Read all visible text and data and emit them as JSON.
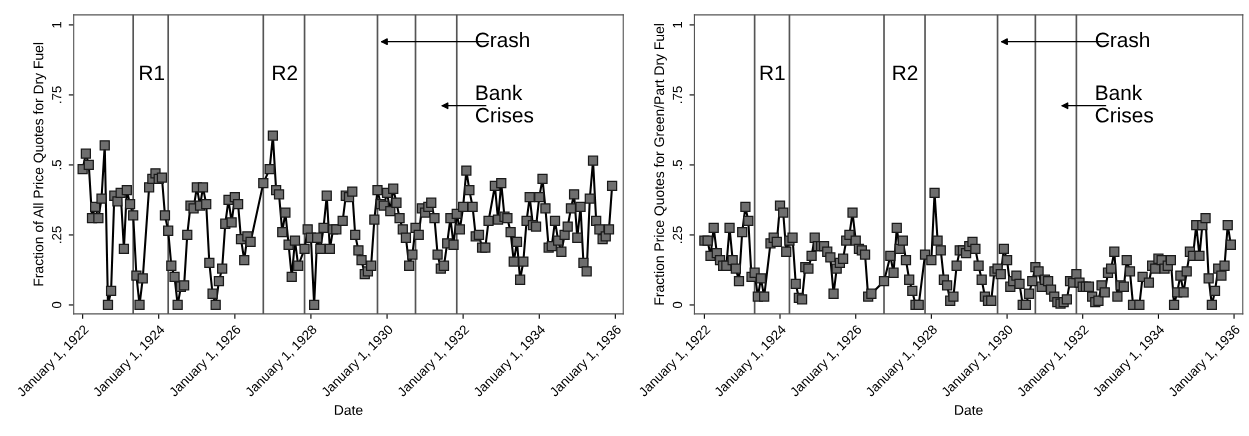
{
  "chart_data": [
    {
      "type": "line",
      "xlabel": "Date",
      "ylabel": "Fraction of All Price Quotes for Dry Fuel",
      "marker": "square",
      "line_style": "solid",
      "xlim": [
        "1921-10-07",
        "1936-03-17"
      ],
      "ylim": [
        -0.032,
        1.036
      ],
      "xticks": [
        {
          "value": "1922-01-01",
          "label": "January 1, 1922"
        },
        {
          "value": "1924-01-01",
          "label": "January 1, 1924"
        },
        {
          "value": "1926-01-01",
          "label": "January 1, 1926"
        },
        {
          "value": "1928-01-01",
          "label": "January 1, 1928"
        },
        {
          "value": "1930-01-01",
          "label": "January 1, 1930"
        },
        {
          "value": "1932-01-01",
          "label": "January 1, 1932"
        },
        {
          "value": "1934-01-01",
          "label": "January 1, 1934"
        },
        {
          "value": "1936-01-01",
          "label": "January 1, 1936"
        }
      ],
      "yticks": [
        0,
        {
          "value": 0.25,
          "label": ".25"
        },
        {
          "value": 0.5,
          "label": ".5"
        },
        {
          "value": 0.75,
          "label": ".75"
        },
        1
      ],
      "ref_lines": [
        {
          "axis": "x",
          "value": "1923-05",
          "color": "#555555"
        },
        {
          "axis": "x",
          "value": "1924-04",
          "color": "#555555"
        },
        {
          "axis": "x",
          "value": "1926-10",
          "color": "#555555"
        },
        {
          "axis": "x",
          "value": "1927-11",
          "color": "#555555"
        },
        {
          "axis": "x",
          "value": "1929-10",
          "color": "#555555"
        },
        {
          "axis": "x",
          "value": "1930-10",
          "color": "#555555"
        },
        {
          "axis": "x",
          "value": "1931-11",
          "color": "#555555"
        }
      ],
      "annotations": [
        "R1",
        "R2",
        {
          "text": "Crash",
          "x": "1929-10",
          "y": 0.94
        },
        "Bank\nCrises"
      ],
      "x": [
        "1922-01",
        "1922-02",
        "1922-03",
        "1922-04",
        "1922-05",
        "1922-06",
        "1922-07",
        "1922-08",
        "1922-09",
        "1922-10",
        "1922-11",
        "1922-12",
        "1923-01",
        "1923-02",
        "1923-03",
        "1923-04",
        "1923-05",
        "1923-06",
        "1923-07",
        "1923-08",
        "1923-10",
        "1923-11",
        "1923-12",
        "1924-01",
        "1924-02",
        "1924-03",
        "1924-04",
        "1924-05",
        "1924-06",
        "1924-07",
        "1924-08",
        "1924-09",
        "1924-10",
        "1924-11",
        "1924-12",
        "1925-01",
        "1925-02",
        "1925-03",
        "1925-04",
        "1925-05",
        "1925-06",
        "1925-07",
        "1925-08",
        "1925-09",
        "1925-10",
        "1925-11",
        "1925-12",
        "1926-01",
        "1926-02",
        "1926-03",
        "1926-04",
        "1926-05",
        "1926-06",
        "1926-10",
        "1926-12",
        "1927-01",
        "1927-02",
        "1927-03",
        "1927-04",
        "1927-05",
        "1927-06",
        "1927-07",
        "1927-08",
        "1927-09",
        "1927-11",
        "1927-12",
        "1928-01",
        "1928-02",
        "1928-03",
        "1928-04",
        "1928-05",
        "1928-06",
        "1928-07",
        "1928-08",
        "1928-09",
        "1928-11",
        "1928-12",
        "1929-01",
        "1929-02",
        "1929-03",
        "1929-04",
        "1929-05",
        "1929-06",
        "1929-07",
        "1929-08",
        "1929-09",
        "1929-10",
        "1929-11",
        "1929-12",
        "1930-01",
        "1930-02",
        "1930-03",
        "1930-04",
        "1930-05",
        "1930-06",
        "1930-07",
        "1930-08",
        "1930-09",
        "1930-10",
        "1930-11",
        "1930-12",
        "1931-01",
        "1931-02",
        "1931-03",
        "1931-04",
        "1931-05",
        "1931-06",
        "1931-07",
        "1931-08",
        "1931-09",
        "1931-10",
        "1931-11",
        "1931-12",
        "1932-01",
        "1932-02",
        "1932-03",
        "1932-04",
        "1932-05",
        "1932-06",
        "1932-07",
        "1932-08",
        "1932-09",
        "1932-11",
        "1932-12",
        "1933-01",
        "1933-02",
        "1933-03",
        "1933-04",
        "1933-05",
        "1933-06",
        "1933-07",
        "1933-08",
        "1933-09",
        "1933-10",
        "1933-11",
        "1933-12",
        "1934-01",
        "1934-02",
        "1934-03",
        "1934-04",
        "1934-05",
        "1934-06",
        "1934-07",
        "1934-08",
        "1934-09",
        "1934-10",
        "1934-11",
        "1934-12",
        "1935-01",
        "1935-02",
        "1935-03",
        "1935-04",
        "1935-05",
        "1935-06",
        "1935-07",
        "1935-08",
        "1935-09",
        "1935-10",
        "1935-11",
        "1935-12"
      ],
      "series": [
        {
          "color": "#000000",
          "values": [
            0.485,
            0.54,
            0.5,
            0.31,
            0.35,
            0.31,
            0.38,
            0.57,
            0,
            0.05,
            0.39,
            0.37,
            0.4,
            0.2,
            0.41,
            0.36,
            0.32,
            0.105,
            0,
            0.095,
            0.42,
            0.45,
            0.47,
            0.45,
            0.455,
            0.32,
            0.265,
            0.14,
            0.1,
            0,
            0.065,
            0.07,
            0.25,
            0.355,
            0.345,
            0.42,
            0.355,
            0.42,
            0.36,
            0.15,
            0.04,
            0,
            0.085,
            0.13,
            0.29,
            0.375,
            0.295,
            0.385,
            0.36,
            0.235,
            0.16,
            0.245,
            0.225,
            0.435,
            0.485,
            0.605,
            0.41,
            0.395,
            0.26,
            0.33,
            0.215,
            0.1,
            0.23,
            0.14,
            0.2,
            0.27,
            0.24,
            0,
            0.24,
            0.2,
            0.275,
            0.39,
            0.2,
            0.27,
            0.27,
            0.3,
            0.39,
            0.385,
            0.405,
            0.25,
            0.195,
            0.16,
            0.11,
            0.12,
            0.14,
            0.305,
            0.41,
            0.36,
            0.355,
            0.4,
            0.335,
            0.415,
            0.365,
            0.31,
            0.27,
            0.24,
            0.14,
            0.18,
            0.275,
            0.25,
            0.345,
            0.33,
            0.35,
            0.365,
            0.31,
            0.18,
            0.13,
            0.14,
            0.22,
            0.31,
            0.215,
            0.325,
            0.27,
            0.35,
            0.48,
            0.41,
            0.35,
            0.245,
            0.25,
            0.205,
            0.205,
            0.3,
            0.425,
            0.305,
            0.435,
            0.315,
            0.31,
            0.26,
            0.155,
            0.225,
            0.09,
            0.155,
            0.3,
            0.385,
            0.285,
            0.28,
            0.385,
            0.45,
            0.345,
            0.205,
            0.21,
            0.3,
            0.23,
            0.19,
            0.25,
            0.28,
            0.345,
            0.395,
            0.24,
            0.35,
            0.15,
            0.12,
            0.38,
            0.515,
            0.3,
            0.27,
            0.235,
            0.245,
            0.27,
            0.425
          ]
        }
      ]
    },
    {
      "type": "line",
      "xlabel": "Date",
      "ylabel": "Fraction Price Quotes for Green/Part Dry Fuel",
      "marker": "square",
      "line_style": "solid",
      "xlim": [
        "1921-09-27",
        "1936-03-25"
      ],
      "ylim": [
        -0.032,
        1.036
      ],
      "xticks": [
        {
          "value": "1922-01-01",
          "label": "January 1, 1922"
        },
        {
          "value": "1924-01-01",
          "label": "January 1, 1924"
        },
        {
          "value": "1926-01-01",
          "label": "January 1, 1926"
        },
        {
          "value": "1928-01-01",
          "label": "January 1, 1928"
        },
        {
          "value": "1930-01-01",
          "label": "January 1, 1930"
        },
        {
          "value": "1932-01-01",
          "label": "January 1, 1932"
        },
        {
          "value": "1934-01-01",
          "label": "January 1, 1934"
        },
        {
          "value": "1936-01-01",
          "label": "January 1, 1936"
        }
      ],
      "yticks": [
        0,
        {
          "value": 0.25,
          "label": ".25"
        },
        {
          "value": 0.5,
          "label": ".5"
        },
        {
          "value": 0.75,
          "label": ".75"
        },
        1
      ],
      "ref_lines": [
        {
          "axis": "x",
          "value": "1923-05",
          "color": "#555555"
        },
        {
          "axis": "x",
          "value": "1924-04",
          "color": "#555555"
        },
        {
          "axis": "x",
          "value": "1926-10",
          "color": "#555555"
        },
        {
          "axis": "x",
          "value": "1927-11",
          "color": "#555555"
        },
        {
          "axis": "x",
          "value": "1929-10",
          "color": "#555555"
        },
        {
          "axis": "x",
          "value": "1930-10",
          "color": "#555555"
        },
        {
          "axis": "x",
          "value": "1931-11",
          "color": "#555555"
        }
      ],
      "annotations": [
        "R1",
        "R2",
        {
          "text": "Crash",
          "x": "1929-10",
          "y": 0.94
        },
        "Bank\nCrises"
      ],
      "x": [
        "1922-01",
        "1922-02",
        "1922-03",
        "1922-04",
        "1922-05",
        "1922-06",
        "1922-07",
        "1922-08",
        "1922-09",
        "1922-10",
        "1922-11",
        "1922-12",
        "1923-01",
        "1923-02",
        "1923-03",
        "1923-04",
        "1923-05",
        "1923-06",
        "1923-07",
        "1923-08",
        "1923-10",
        "1923-11",
        "1923-12",
        "1924-01",
        "1924-02",
        "1924-03",
        "1924-04",
        "1924-05",
        "1924-06",
        "1924-07",
        "1924-08",
        "1924-09",
        "1924-10",
        "1924-11",
        "1924-12",
        "1925-01",
        "1925-02",
        "1925-03",
        "1925-04",
        "1925-05",
        "1925-06",
        "1925-07",
        "1925-08",
        "1925-09",
        "1925-10",
        "1925-11",
        "1925-12",
        "1926-01",
        "1926-02",
        "1926-03",
        "1926-04",
        "1926-05",
        "1926-06",
        "1926-10",
        "1926-12",
        "1927-01",
        "1927-02",
        "1927-03",
        "1927-04",
        "1927-05",
        "1927-06",
        "1927-07",
        "1927-08",
        "1927-09",
        "1927-11",
        "1928-01",
        "1928-02",
        "1928-03",
        "1928-04",
        "1928-05",
        "1928-06",
        "1928-07",
        "1928-08",
        "1928-09",
        "1928-10",
        "1928-11",
        "1928-12",
        "1929-01",
        "1929-02",
        "1929-03",
        "1929-04",
        "1929-05",
        "1929-06",
        "1929-07",
        "1929-08",
        "1929-09",
        "1929-10",
        "1929-11",
        "1929-12",
        "1930-01",
        "1930-02",
        "1930-03",
        "1930-04",
        "1930-05",
        "1930-06",
        "1930-07",
        "1930-08",
        "1930-09",
        "1930-10",
        "1930-11",
        "1930-12",
        "1931-01",
        "1931-02",
        "1931-03",
        "1931-04",
        "1931-05",
        "1931-06",
        "1931-07",
        "1931-08",
        "1931-09",
        "1931-10",
        "1931-11",
        "1931-12",
        "1932-01",
        "1932-02",
        "1932-03",
        "1932-04",
        "1932-05",
        "1932-06",
        "1932-07",
        "1932-08",
        "1932-09",
        "1932-10",
        "1932-11",
        "1932-12",
        "1933-01",
        "1933-02",
        "1933-03",
        "1933-04",
        "1933-05",
        "1933-07",
        "1933-08",
        "1933-10",
        "1933-11",
        "1933-12",
        "1934-01",
        "1934-02",
        "1934-03",
        "1934-04",
        "1934-05",
        "1934-06",
        "1934-07",
        "1934-08",
        "1934-09",
        "1934-10",
        "1934-11",
        "1934-12",
        "1935-01",
        "1935-02",
        "1935-03",
        "1935-04",
        "1935-05",
        "1935-06",
        "1935-07",
        "1935-08",
        "1935-09",
        "1935-10",
        "1935-11",
        "1935-12"
      ],
      "series": [
        {
          "color": "#000000",
          "values": [
            0.23,
            0.23,
            0.175,
            0.275,
            0.185,
            0.16,
            0.14,
            0.14,
            0.275,
            0.16,
            0.13,
            0.085,
            0.26,
            0.35,
            0.3,
            0.1,
            0.115,
            0.03,
            0.095,
            0.03,
            0.22,
            0.24,
            0.225,
            0.355,
            0.33,
            0.19,
            0.23,
            0.24,
            0.075,
            0.025,
            0.02,
            0.135,
            0.13,
            0.175,
            0.24,
            0.21,
            0.21,
            0.21,
            0.19,
            0.17,
            0.04,
            0.13,
            0.15,
            0.165,
            0.23,
            0.25,
            0.33,
            0.23,
            0.2,
            0.195,
            0.18,
            0.03,
            0.04,
            0.085,
            0.175,
            0.115,
            0.275,
            0.2,
            0.23,
            0.16,
            0.09,
            0.05,
            0,
            0,
            0.18,
            0.16,
            0.4,
            0.23,
            0.195,
            0.09,
            0.07,
            0.015,
            0.03,
            0.14,
            0.195,
            0.195,
            0.185,
            0.21,
            0.225,
            0.2,
            0.14,
            0.09,
            0.03,
            0.015,
            0.015,
            0.12,
            0.13,
            0.11,
            0.2,
            0.16,
            0.065,
            0.085,
            0.105,
            0.075,
            0,
            0,
            0.04,
            0.085,
            0.135,
            0.12,
            0.065,
            0.09,
            0.085,
            0.055,
            0.03,
            0.01,
            0.005,
            0.01,
            0.02,
            0.085,
            0.08,
            0.11,
            0.08,
            0.065,
            0.065,
            0.065,
            0.03,
            0.01,
            0.015,
            0.07,
            0.045,
            0.115,
            0.13,
            0.19,
            0.03,
            0.07,
            0.065,
            0.16,
            0.12,
            0,
            0,
            0.1,
            0.08,
            0.14,
            0.13,
            0.165,
            0.16,
            0.13,
            0.14,
            0.16,
            0,
            0.045,
            0.105,
            0.045,
            0.12,
            0.19,
            0.175,
            0.285,
            0.175,
            0.285,
            0.31,
            0.095,
            0,
            0.05,
            0.13,
            0.105,
            0.14,
            0.285,
            0.215
          ]
        }
      ]
    }
  ]
}
